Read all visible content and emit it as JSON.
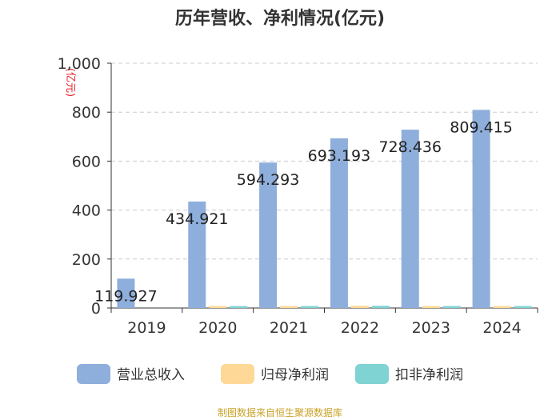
{
  "chart_data": {
    "type": "bar",
    "title": "历年营收、净利情况(亿元)",
    "unit_label": "(亿元)",
    "categories": [
      "2019",
      "2020",
      "2021",
      "2022",
      "2023",
      "2024"
    ],
    "ylim": [
      0,
      1000
    ],
    "yticks": [
      0,
      200,
      400,
      600,
      800,
      1000
    ],
    "ytick_labels": [
      "0",
      "200",
      "400",
      "600",
      "800",
      "1,000"
    ],
    "grid": true,
    "legend_position": "bottom",
    "series": [
      {
        "name": "营业总收入",
        "color": "#8eaedc",
        "values": [
          119.927,
          434.921,
          594.293,
          693.193,
          728.436,
          809.415
        ],
        "labels": [
          "119.927",
          "434.921",
          "594.293",
          "693.193",
          "728.436",
          "809.415"
        ]
      },
      {
        "name": "归母净利润",
        "color": "#fdd896",
        "values": [
          0,
          8,
          8,
          9,
          8,
          8
        ]
      },
      {
        "name": "扣非净利润",
        "color": "#80d3d3",
        "values": [
          0,
          8,
          8,
          9,
          8,
          8
        ]
      }
    ]
  },
  "source": "制图数据来自恒生聚源数据库"
}
